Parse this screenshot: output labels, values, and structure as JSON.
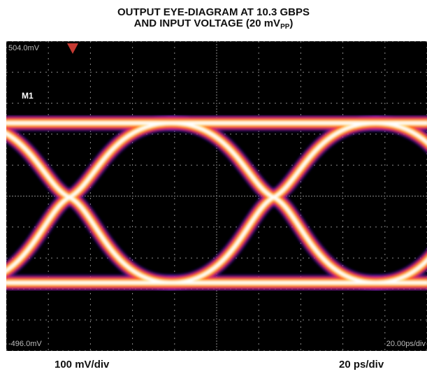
{
  "title_line1": "OUTPUT EYE-DIAGRAM AT 10.3 GBPS",
  "title_line2_main": "AND INPUT VOLTAGE (20 mV",
  "title_line2_sub": "PP",
  "title_line2_end": ")",
  "footer_left": "100 mV/div",
  "footer_right": "20 ps/div",
  "chart_data": {
    "type": "eye-diagram",
    "bit_rate": "10.3 GBPS",
    "input_voltage": "20 mVPP",
    "vertical_scale": "100 mV/div",
    "horizontal_scale": "20 ps/div",
    "top_readout": "504.0mV",
    "bottom_readout": "-496.0mV",
    "time_readout": "20.00ps/div",
    "marker_label": "M1",
    "ylim_mV": [
      -496,
      504
    ],
    "x_divisions": 10,
    "y_divisions": 10,
    "unit_interval_ps": 97.1,
    "crossing_times_ps": [
      30,
      127.1
    ],
    "high_level_mV": 240,
    "low_level_mV": -276,
    "crossing_level_mV": 0,
    "grid": true,
    "colors": {
      "background": "#000000",
      "trace_core": "#ffffff",
      "trace_mid": "#ffd34d",
      "trace_outer": "#ff5a1a",
      "trace_fringe": "#d61e6e",
      "trace_halo": "#3a1aa0",
      "grid": "#8a8a8a",
      "marker": "#c53a32"
    }
  }
}
